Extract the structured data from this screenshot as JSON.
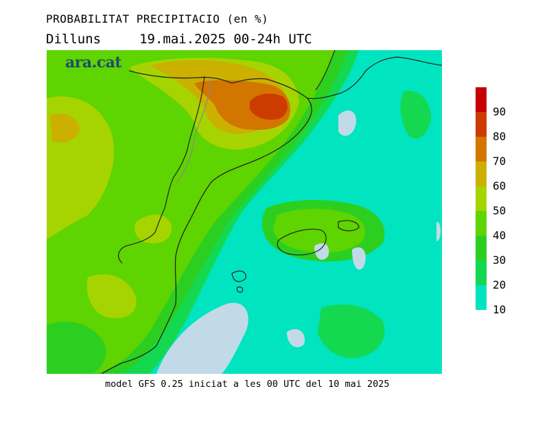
{
  "header": {
    "title": "PROBABILITAT PRECIPITACIO (en %)",
    "day": "Dilluns",
    "period": "19.mai.2025 00-24h UTC"
  },
  "logo": {
    "text": "ara.cat",
    "color": "#1e4c6e"
  },
  "legend": {
    "levels": [
      {
        "label": "90",
        "color": "#c40000"
      },
      {
        "label": "80",
        "color": "#cc3c00"
      },
      {
        "label": "70",
        "color": "#d27600"
      },
      {
        "label": "60",
        "color": "#ccb000"
      },
      {
        "label": "50",
        "color": "#a6d400"
      },
      {
        "label": "40",
        "color": "#5ed400"
      },
      {
        "label": "30",
        "color": "#2ccf20"
      },
      {
        "label": "20",
        "color": "#14d850"
      },
      {
        "label": "10",
        "color": "#00e4c0"
      }
    ],
    "below_min_color": "#c2dae8"
  },
  "footer": {
    "text": "model GFS 0.25 iniciat a les 00 UTC del 10 mai 2025"
  }
}
